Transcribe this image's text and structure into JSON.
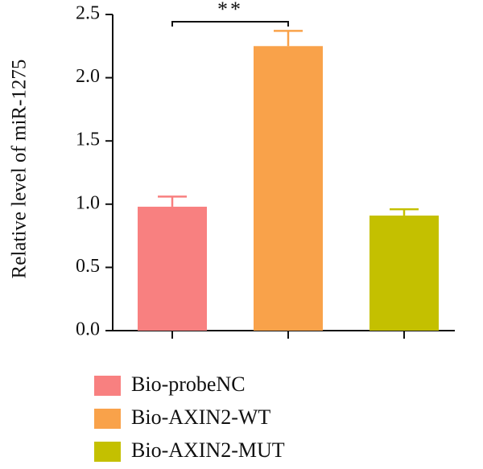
{
  "chart_data": {
    "type": "bar",
    "title": "",
    "xlabel": "",
    "ylabel": "Relative level of miR-1275",
    "ylim": [
      0,
      2.5
    ],
    "yticks": [
      "0.0",
      "0.5",
      "1.0",
      "1.5",
      "2.0",
      "2.5"
    ],
    "grid": false,
    "legend_placement": "bottom",
    "categories": [
      "Bio-probeNC",
      "Bio-AXIN2-WT",
      "Bio-AXIN2-MUT"
    ],
    "values": [
      0.98,
      2.25,
      0.91
    ],
    "errors": [
      0.08,
      0.12,
      0.05
    ],
    "colors": [
      "#f88080",
      "#f9a24a",
      "#c4c000"
    ],
    "annotations": [
      {
        "text": "**",
        "from_category": "Bio-probeNC",
        "to_category": "Bio-AXIN2-WT"
      }
    ],
    "legend": [
      {
        "label": "Bio-probeNC",
        "color": "#f88080"
      },
      {
        "label": "Bio-AXIN2-WT",
        "color": "#f9a24a"
      },
      {
        "label": "Bio-AXIN2-MUT",
        "color": "#c4c000"
      }
    ]
  }
}
